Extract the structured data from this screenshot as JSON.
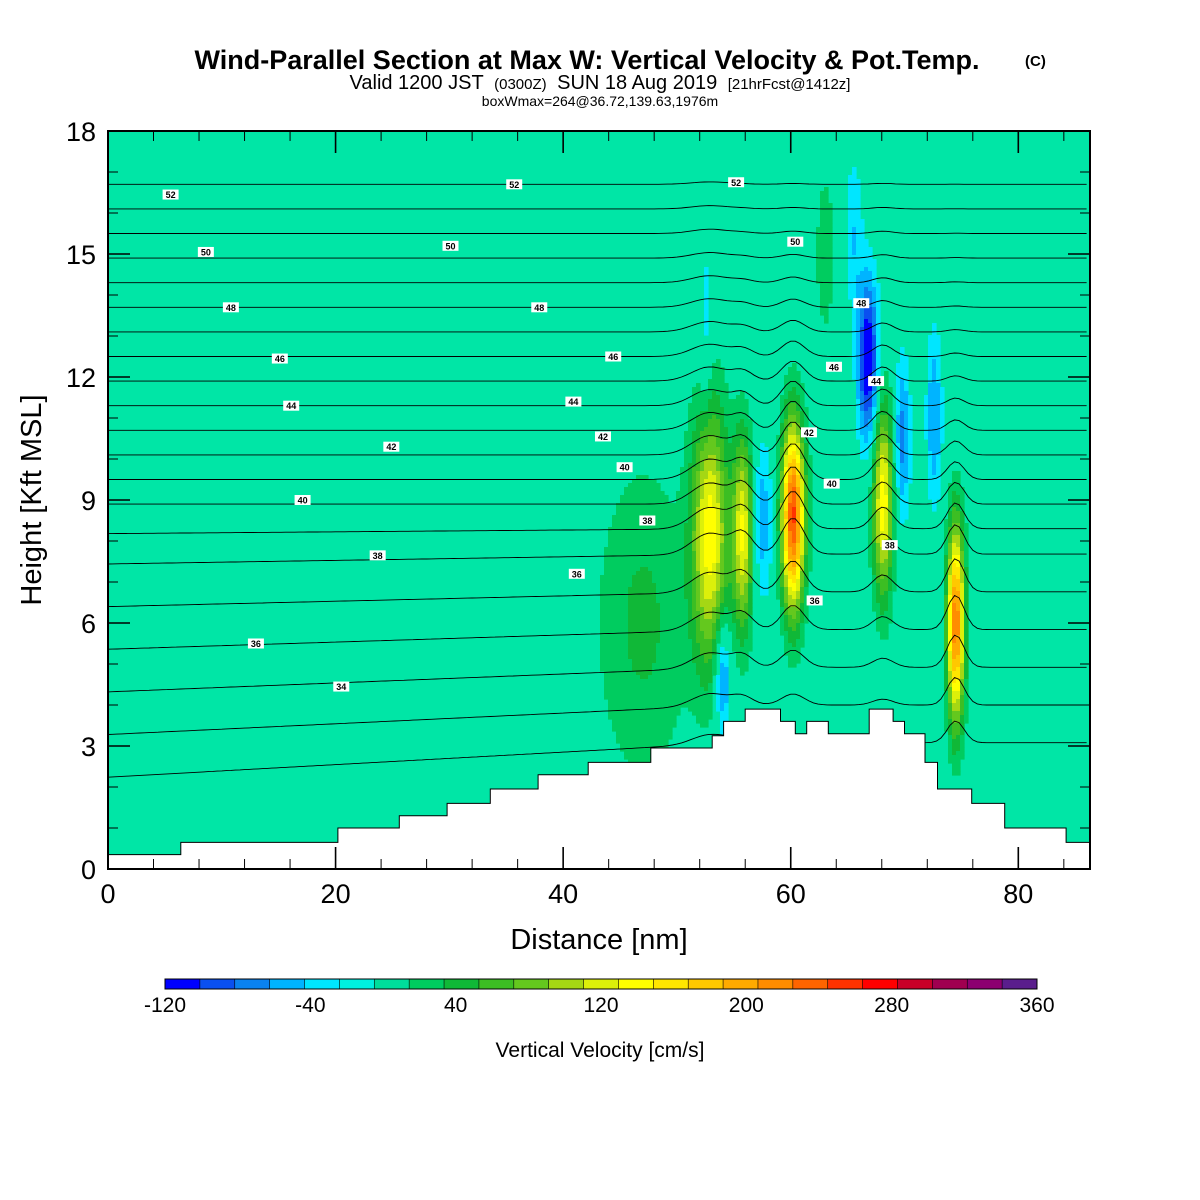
{
  "chart_data": {
    "type": "heatmap",
    "title": "Wind-Parallel Section at Max W: Vertical Velocity & Pot.Temp.",
    "title_mark": "(C)",
    "subtitle": {
      "valid": "Valid 1200 JST",
      "utc": "(0300Z)",
      "date": "SUN 18 Aug 2019",
      "fcst": "[21hrFcst@1412z]"
    },
    "box_info": "boxWmax=264@36.72,139.63,1976m",
    "xlabel": "Distance [nm]",
    "ylabel": "Height [Kft MSL]",
    "xlim": [
      0,
      86.3
    ],
    "ylim": [
      0,
      18
    ],
    "x_ticks": [
      "0",
      "20",
      "40",
      "60",
      "80"
    ],
    "y_ticks": [
      "0",
      "3",
      "6",
      "9",
      "12",
      "15",
      "18"
    ],
    "colorbar": {
      "label": "Vertical Velocity [cm/s]",
      "tick_labels": [
        "-120",
        "-40",
        "40",
        "120",
        "200",
        "280",
        "360"
      ],
      "levels": [
        -120,
        -100,
        -80,
        -60,
        -40,
        -20,
        0,
        20,
        40,
        60,
        80,
        100,
        120,
        140,
        160,
        180,
        200,
        220,
        240,
        260,
        280,
        300,
        320,
        340,
        360
      ],
      "colors": [
        "#0000ff",
        "#0a50f0",
        "#0a82f0",
        "#00b4ff",
        "#00e6ff",
        "#00f0e0",
        "#00dd9b",
        "#00cc5f",
        "#10b837",
        "#3cbe23",
        "#64c81e",
        "#a5d714",
        "#dcf00a",
        "#ffff00",
        "#ffe600",
        "#ffc800",
        "#ffaa00",
        "#ff8c00",
        "#ff6400",
        "#ff3200",
        "#ff0000",
        "#c80028",
        "#a00050",
        "#8c0070",
        "#5a1e8c"
      ]
    },
    "background_color": "#00e6a6",
    "terrain": [
      [
        0,
        0.35
      ],
      [
        6.4,
        0.35
      ],
      [
        6.4,
        0.65
      ],
      [
        20.2,
        0.65
      ],
      [
        20.2,
        1.0
      ],
      [
        25.6,
        1.0
      ],
      [
        25.6,
        1.3
      ],
      [
        29.8,
        1.3
      ],
      [
        29.8,
        1.6
      ],
      [
        33.6,
        1.6
      ],
      [
        33.6,
        1.95
      ],
      [
        37.8,
        1.95
      ],
      [
        37.8,
        2.3
      ],
      [
        42.2,
        2.3
      ],
      [
        42.2,
        2.6
      ],
      [
        47.7,
        2.6
      ],
      [
        47.7,
        2.95
      ],
      [
        53.1,
        2.95
      ],
      [
        53.1,
        3.25
      ],
      [
        54.1,
        3.25
      ],
      [
        54.1,
        3.6
      ],
      [
        56.0,
        3.6
      ],
      [
        56.0,
        3.9
      ],
      [
        59.1,
        3.9
      ],
      [
        59.1,
        3.6
      ],
      [
        60.4,
        3.6
      ],
      [
        60.4,
        3.3
      ],
      [
        61.4,
        3.3
      ],
      [
        61.4,
        3.6
      ],
      [
        63.3,
        3.6
      ],
      [
        63.3,
        3.3
      ],
      [
        66.9,
        3.3
      ],
      [
        66.9,
        3.9
      ],
      [
        69.0,
        3.9
      ],
      [
        69.0,
        3.6
      ],
      [
        70.0,
        3.6
      ],
      [
        70.0,
        3.3
      ],
      [
        71.8,
        3.3
      ],
      [
        71.8,
        2.6
      ],
      [
        72.9,
        2.6
      ],
      [
        72.9,
        1.95
      ],
      [
        75.9,
        1.95
      ],
      [
        75.9,
        1.6
      ],
      [
        78.8,
        1.6
      ],
      [
        78.8,
        1.0
      ],
      [
        84.2,
        1.0
      ],
      [
        84.2,
        0.65
      ],
      [
        86.3,
        0.65
      ]
    ],
    "updrafts": [
      {
        "x": 52.9,
        "y": 8.2,
        "amp": 150,
        "w": 1.6,
        "h": 3.2
      },
      {
        "x": 55.8,
        "y": 8.2,
        "amp": 140,
        "w": 0.9,
        "h": 2.4
      },
      {
        "x": 60.2,
        "y": 8.6,
        "amp": 264,
        "w": 1.0,
        "h": 2.3
      },
      {
        "x": 68.1,
        "y": 9.0,
        "amp": 155,
        "w": 0.9,
        "h": 2.4
      },
      {
        "x": 74.5,
        "y": 6.0,
        "amp": 240,
        "w": 0.75,
        "h": 2.4
      },
      {
        "x": 47.0,
        "y": 6.0,
        "amp": 45,
        "w": 4.2,
        "h": 4.0
      },
      {
        "x": 28.0,
        "y": 10.0,
        "amp": 18,
        "w": 5.0,
        "h": 6.0
      },
      {
        "x": 8.0,
        "y": 1.6,
        "amp": 15,
        "w": 4.5,
        "h": 2.5
      },
      {
        "x": 83.0,
        "y": 3.5,
        "amp": 20,
        "w": 2.5,
        "h": 4.0
      },
      {
        "x": 63.0,
        "y": 15.0,
        "amp": 25,
        "w": 1.4,
        "h": 3.5
      }
    ],
    "downdrafts": [
      {
        "x": 54.0,
        "y": 4.7,
        "amp": 85,
        "w": 0.7,
        "h": 1.4
      },
      {
        "x": 57.5,
        "y": 8.5,
        "amp": 55,
        "w": 0.9,
        "h": 2.0
      },
      {
        "x": 66.8,
        "y": 12.4,
        "amp": 130,
        "w": 0.9,
        "h": 2.0
      },
      {
        "x": 69.8,
        "y": 10.5,
        "amp": 70,
        "w": 0.7,
        "h": 2.0
      },
      {
        "x": 72.6,
        "y": 11.0,
        "amp": 60,
        "w": 0.7,
        "h": 2.2
      },
      {
        "x": 65.5,
        "y": 15.5,
        "amp": 40,
        "w": 0.8,
        "h": 2.0
      },
      {
        "x": 52.5,
        "y": 13.0,
        "amp": 35,
        "w": 0.6,
        "h": 2.5
      }
    ],
    "theta_levels": [
      33,
      34,
      35,
      36,
      37,
      38,
      39,
      40,
      41,
      42,
      43,
      44,
      45,
      46,
      47,
      48,
      49,
      50,
      51,
      52,
      53
    ],
    "theta_labels": [
      {
        "text": "52",
        "x": 5.5,
        "y": 16.45
      },
      {
        "text": "52",
        "x": 35.7,
        "y": 16.7
      },
      {
        "text": "52",
        "x": 55.2,
        "y": 16.75
      },
      {
        "text": "50",
        "x": 8.6,
        "y": 15.05
      },
      {
        "text": "50",
        "x": 30.1,
        "y": 15.2
      },
      {
        "text": "50",
        "x": 60.4,
        "y": 15.3
      },
      {
        "text": "48",
        "x": 10.8,
        "y": 13.7
      },
      {
        "text": "48",
        "x": 37.9,
        "y": 13.7
      },
      {
        "text": "48",
        "x": 66.2,
        "y": 13.8
      },
      {
        "text": "46",
        "x": 15.1,
        "y": 12.45
      },
      {
        "text": "46",
        "x": 44.4,
        "y": 12.5
      },
      {
        "text": "46",
        "x": 63.8,
        "y": 12.25
      },
      {
        "text": "44",
        "x": 16.1,
        "y": 11.3
      },
      {
        "text": "44",
        "x": 40.9,
        "y": 11.4
      },
      {
        "text": "44",
        "x": 67.5,
        "y": 11.9
      },
      {
        "text": "42",
        "x": 24.9,
        "y": 10.3
      },
      {
        "text": "42",
        "x": 43.5,
        "y": 10.55
      },
      {
        "text": "42",
        "x": 61.6,
        "y": 10.65
      },
      {
        "text": "40",
        "x": 17.1,
        "y": 9.0
      },
      {
        "text": "40",
        "x": 45.4,
        "y": 9.8
      },
      {
        "text": "40",
        "x": 63.6,
        "y": 9.4
      },
      {
        "text": "38",
        "x": 23.7,
        "y": 7.65
      },
      {
        "text": "38",
        "x": 47.4,
        "y": 8.5
      },
      {
        "text": "38",
        "x": 68.7,
        "y": 7.9
      },
      {
        "text": "36",
        "x": 41.2,
        "y": 7.2
      },
      {
        "text": "36",
        "x": 62.1,
        "y": 6.55
      },
      {
        "text": "36",
        "x": 13.0,
        "y": 5.5
      },
      {
        "text": "34",
        "x": 20.5,
        "y": 4.45
      }
    ]
  }
}
